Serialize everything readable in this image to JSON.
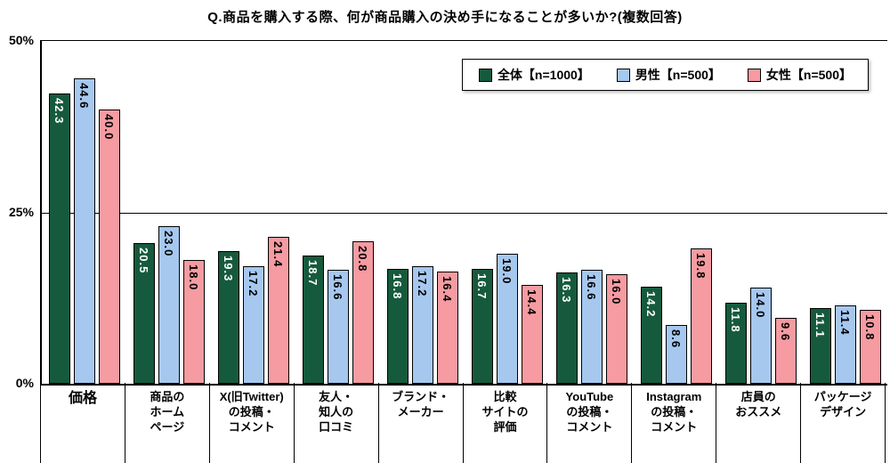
{
  "title": "Q.商品を購入する際、何が商品購入の決め手になることが多いか?(複数回答)",
  "legend": {
    "items": [
      {
        "label": "全体【n=1000】",
        "color": "#165a3d"
      },
      {
        "label": "男性【n=500】",
        "color": "#a6c8ef"
      },
      {
        "label": "女性【n=500】",
        "color": "#f59ba1"
      }
    ]
  },
  "axis": {
    "ticks": [
      {
        "label": "50%",
        "value": 50
      },
      {
        "label": "25%",
        "value": 25
      },
      {
        "label": "0%",
        "value": 0
      }
    ]
  },
  "chart_data": {
    "type": "bar",
    "title": "Q.商品を購入する際、何が商品購入の決め手になることが多いか?(複数回答)",
    "xlabel": "",
    "ylabel": "%",
    "ylim": [
      0,
      50
    ],
    "yticks": [
      0,
      25,
      50
    ],
    "grid": "horizontal line at 25%",
    "legend_position": "top-right",
    "value_labels": "inside bar top, rotated vertical, one decimal",
    "categories": [
      "価格",
      "商品のホームページ",
      "X(旧Twitter)の投稿・コメント",
      "友人・知人の口コミ",
      "ブランド・メーカー",
      "比較サイトの評価",
      "YouTubeの投稿・コメント",
      "Instagramの投稿・コメント",
      "店員のおススメ",
      "パッケージデザイン"
    ],
    "category_lines": [
      [
        "価格"
      ],
      [
        "商品の",
        "ホーム",
        "ページ"
      ],
      [
        "X(旧Twitter)",
        "の投稿・",
        "コメント"
      ],
      [
        "友人・",
        "知人の",
        "口コミ"
      ],
      [
        "ブランド・",
        "メーカー"
      ],
      [
        "比較",
        "サイトの",
        "評価"
      ],
      [
        "YouTube",
        "の投稿・",
        "コメント"
      ],
      [
        "Instagram",
        "の投稿・",
        "コメント"
      ],
      [
        "店員の",
        "おススメ"
      ],
      [
        "パッケージ",
        "デザイン"
      ]
    ],
    "series": [
      {
        "name": "全体【n=1000】",
        "color": "#165a3d",
        "label_color": "#ffffff",
        "values": [
          42.3,
          20.5,
          19.3,
          18.7,
          16.8,
          16.7,
          16.3,
          14.2,
          11.8,
          11.1
        ]
      },
      {
        "name": "男性【n=500】",
        "color": "#a6c8ef",
        "label_color": "#000000",
        "values": [
          44.6,
          23.0,
          17.2,
          16.6,
          17.2,
          19.0,
          16.6,
          8.6,
          14.0,
          11.4
        ]
      },
      {
        "name": "女性【n=500】",
        "color": "#f59ba1",
        "label_color": "#000000",
        "values": [
          40.0,
          18.0,
          21.4,
          20.8,
          16.4,
          14.4,
          16.0,
          19.8,
          9.6,
          10.8
        ]
      }
    ]
  }
}
